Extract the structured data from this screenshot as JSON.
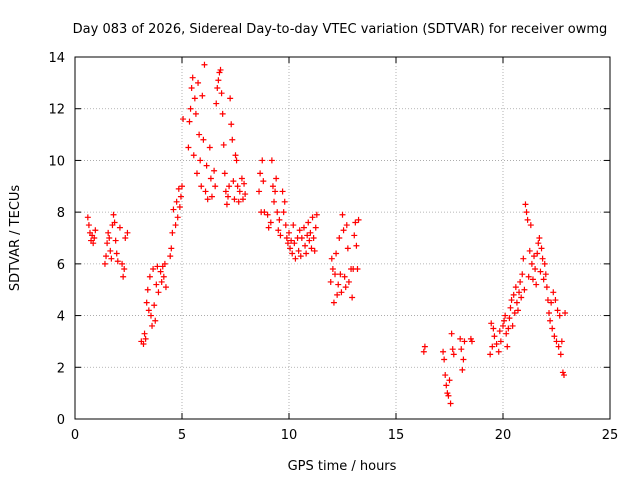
{
  "chart_data": {
    "type": "scatter",
    "title": "Day 083 of 2026, Sidereal Day-to-day VTEC variation (SDTVAR) for receiver owmg",
    "xlabel": "GPS time / hours",
    "ylabel": "SDTVAR / TECUs",
    "xlim": [
      0,
      25
    ],
    "ylim": [
      0,
      14
    ],
    "xticks": [
      0,
      5,
      10,
      15,
      20,
      25
    ],
    "yticks": [
      0,
      2,
      4,
      6,
      8,
      10,
      12,
      14
    ],
    "grid": true,
    "marker": "+",
    "colors": {
      "points": "#ff0000",
      "grid": "#a0a0a0",
      "axes": "#000000"
    },
    "series": [
      {
        "name": "SDTVAR",
        "points": [
          [
            0.6,
            7.8
          ],
          [
            0.65,
            7.5
          ],
          [
            0.7,
            7.2
          ],
          [
            0.75,
            6.9
          ],
          [
            0.8,
            7.1
          ],
          [
            0.85,
            6.8
          ],
          [
            0.9,
            7.0
          ],
          [
            0.95,
            7.3
          ],
          [
            1.4,
            6.0
          ],
          [
            1.45,
            6.3
          ],
          [
            1.5,
            6.8
          ],
          [
            1.55,
            7.2
          ],
          [
            1.6,
            7.0
          ],
          [
            1.65,
            6.5
          ],
          [
            1.7,
            6.2
          ],
          [
            1.75,
            7.5
          ],
          [
            1.8,
            7.9
          ],
          [
            1.85,
            7.6
          ],
          [
            1.9,
            6.9
          ],
          [
            1.95,
            6.4
          ],
          [
            2.0,
            6.1
          ],
          [
            2.1,
            7.4
          ],
          [
            2.2,
            6.0
          ],
          [
            2.25,
            5.5
          ],
          [
            2.3,
            5.8
          ],
          [
            2.35,
            7.0
          ],
          [
            2.45,
            7.2
          ],
          [
            3.1,
            3.0
          ],
          [
            3.2,
            2.9
          ],
          [
            3.25,
            3.3
          ],
          [
            3.3,
            3.1
          ],
          [
            3.35,
            4.5
          ],
          [
            3.4,
            5.0
          ],
          [
            3.45,
            4.2
          ],
          [
            3.5,
            5.5
          ],
          [
            3.55,
            4.0
          ],
          [
            3.6,
            3.6
          ],
          [
            3.65,
            5.8
          ],
          [
            3.7,
            4.4
          ],
          [
            3.75,
            3.8
          ],
          [
            3.8,
            5.2
          ],
          [
            3.85,
            5.9
          ],
          [
            3.9,
            4.9
          ],
          [
            4.0,
            5.7
          ],
          [
            4.05,
            5.3
          ],
          [
            4.1,
            5.9
          ],
          [
            4.15,
            5.5
          ],
          [
            4.2,
            6.0
          ],
          [
            4.25,
            5.1
          ],
          [
            4.45,
            6.3
          ],
          [
            4.5,
            6.6
          ],
          [
            4.55,
            7.2
          ],
          [
            4.6,
            8.1
          ],
          [
            4.7,
            7.5
          ],
          [
            4.75,
            8.4
          ],
          [
            4.8,
            7.8
          ],
          [
            4.85,
            8.9
          ],
          [
            4.9,
            8.2
          ],
          [
            4.95,
            8.6
          ],
          [
            5.0,
            9.0
          ],
          [
            5.05,
            11.6
          ],
          [
            5.3,
            10.5
          ],
          [
            5.35,
            11.5
          ],
          [
            5.4,
            12.0
          ],
          [
            5.45,
            12.8
          ],
          [
            5.5,
            13.2
          ],
          [
            5.55,
            10.2
          ],
          [
            5.6,
            12.4
          ],
          [
            5.65,
            11.8
          ],
          [
            5.7,
            9.5
          ],
          [
            5.75,
            13.0
          ],
          [
            5.8,
            11.0
          ],
          [
            5.85,
            10.0
          ],
          [
            5.9,
            9.0
          ],
          [
            5.95,
            12.5
          ],
          [
            6.0,
            10.8
          ],
          [
            6.05,
            13.7
          ],
          [
            6.1,
            8.8
          ],
          [
            6.15,
            9.8
          ],
          [
            6.2,
            8.5
          ],
          [
            6.3,
            10.5
          ],
          [
            6.35,
            9.3
          ],
          [
            6.4,
            8.6
          ],
          [
            6.5,
            9.6
          ],
          [
            6.55,
            9.0
          ],
          [
            6.6,
            12.2
          ],
          [
            6.65,
            12.8
          ],
          [
            6.7,
            13.1
          ],
          [
            6.75,
            13.4
          ],
          [
            6.8,
            13.5
          ],
          [
            6.85,
            12.6
          ],
          [
            6.9,
            11.8
          ],
          [
            6.95,
            10.6
          ],
          [
            7.0,
            9.5
          ],
          [
            7.05,
            8.8
          ],
          [
            7.1,
            8.3
          ],
          [
            7.15,
            8.6
          ],
          [
            7.2,
            9.0
          ],
          [
            7.25,
            12.4
          ],
          [
            7.3,
            11.4
          ],
          [
            7.35,
            10.8
          ],
          [
            7.4,
            9.2
          ],
          [
            7.45,
            8.5
          ],
          [
            7.5,
            10.2
          ],
          [
            7.55,
            10.0
          ],
          [
            7.6,
            9.0
          ],
          [
            7.65,
            8.4
          ],
          [
            7.7,
            8.8
          ],
          [
            7.8,
            9.3
          ],
          [
            7.85,
            8.5
          ],
          [
            7.9,
            9.1
          ],
          [
            7.95,
            8.7
          ],
          [
            8.6,
            8.8
          ],
          [
            8.65,
            9.5
          ],
          [
            8.7,
            8.0
          ],
          [
            8.75,
            10.0
          ],
          [
            8.8,
            9.2
          ],
          [
            8.85,
            8.0
          ],
          [
            9.0,
            7.9
          ],
          [
            9.05,
            7.4
          ],
          [
            9.15,
            7.6
          ],
          [
            9.2,
            10.0
          ],
          [
            9.25,
            9.0
          ],
          [
            9.3,
            8.4
          ],
          [
            9.35,
            8.8
          ],
          [
            9.4,
            9.3
          ],
          [
            9.45,
            8.0
          ],
          [
            9.5,
            7.3
          ],
          [
            9.55,
            7.7
          ],
          [
            9.6,
            7.1
          ],
          [
            9.7,
            8.8
          ],
          [
            9.75,
            8.0
          ],
          [
            9.8,
            8.4
          ],
          [
            9.85,
            7.5
          ],
          [
            9.9,
            7.0
          ],
          [
            9.95,
            6.8
          ],
          [
            10.0,
            7.2
          ],
          [
            10.05,
            6.6
          ],
          [
            10.1,
            6.9
          ],
          [
            10.15,
            6.4
          ],
          [
            10.2,
            7.5
          ],
          [
            10.25,
            6.8
          ],
          [
            10.3,
            6.2
          ],
          [
            10.4,
            7.0
          ],
          [
            10.45,
            6.5
          ],
          [
            10.5,
            7.3
          ],
          [
            10.55,
            6.3
          ],
          [
            10.6,
            7.0
          ],
          [
            10.7,
            7.4
          ],
          [
            10.75,
            6.7
          ],
          [
            10.8,
            6.4
          ],
          [
            10.85,
            7.1
          ],
          [
            10.9,
            7.6
          ],
          [
            10.95,
            6.9
          ],
          [
            11.0,
            7.2
          ],
          [
            11.05,
            6.6
          ],
          [
            11.1,
            7.8
          ],
          [
            11.15,
            7.0
          ],
          [
            11.2,
            6.5
          ],
          [
            11.25,
            7.4
          ],
          [
            11.3,
            7.9
          ],
          [
            11.95,
            5.3
          ],
          [
            12.0,
            6.2
          ],
          [
            12.05,
            5.8
          ],
          [
            12.1,
            4.5
          ],
          [
            12.15,
            5.6
          ],
          [
            12.2,
            6.4
          ],
          [
            12.25,
            4.8
          ],
          [
            12.3,
            5.2
          ],
          [
            12.35,
            7.0
          ],
          [
            12.4,
            5.6
          ],
          [
            12.45,
            4.9
          ],
          [
            12.5,
            7.9
          ],
          [
            12.55,
            7.3
          ],
          [
            12.6,
            5.5
          ],
          [
            12.65,
            5.1
          ],
          [
            12.7,
            7.5
          ],
          [
            12.75,
            6.6
          ],
          [
            12.8,
            5.3
          ],
          [
            12.9,
            5.8
          ],
          [
            12.95,
            4.7
          ],
          [
            13.0,
            5.8
          ],
          [
            13.05,
            7.1
          ],
          [
            13.1,
            7.6
          ],
          [
            13.15,
            6.7
          ],
          [
            13.2,
            5.8
          ],
          [
            13.25,
            7.7
          ],
          [
            16.3,
            2.6
          ],
          [
            16.35,
            2.8
          ],
          [
            17.2,
            2.6
          ],
          [
            17.25,
            2.3
          ],
          [
            17.3,
            1.7
          ],
          [
            17.35,
            1.3
          ],
          [
            17.4,
            1.0
          ],
          [
            17.45,
            0.9
          ],
          [
            17.5,
            1.5
          ],
          [
            17.55,
            0.6
          ],
          [
            17.6,
            3.3
          ],
          [
            17.65,
            2.7
          ],
          [
            17.7,
            2.5
          ],
          [
            18.0,
            3.1
          ],
          [
            18.05,
            2.7
          ],
          [
            18.1,
            1.9
          ],
          [
            18.15,
            2.3
          ],
          [
            18.2,
            3.0
          ],
          [
            18.5,
            3.1
          ],
          [
            18.55,
            3.0
          ],
          [
            19.4,
            2.5
          ],
          [
            19.45,
            3.7
          ],
          [
            19.5,
            2.8
          ],
          [
            19.55,
            3.5
          ],
          [
            19.6,
            3.2
          ],
          [
            19.7,
            2.9
          ],
          [
            19.8,
            2.6
          ],
          [
            19.85,
            3.4
          ],
          [
            19.9,
            3.0
          ],
          [
            20.0,
            3.6
          ],
          [
            20.05,
            3.8
          ],
          [
            20.1,
            4.0
          ],
          [
            20.15,
            3.3
          ],
          [
            20.2,
            2.8
          ],
          [
            20.25,
            3.5
          ],
          [
            20.3,
            3.9
          ],
          [
            20.35,
            4.3
          ],
          [
            20.4,
            4.6
          ],
          [
            20.45,
            3.6
          ],
          [
            20.5,
            4.8
          ],
          [
            20.55,
            4.1
          ],
          [
            20.6,
            5.1
          ],
          [
            20.65,
            4.5
          ],
          [
            20.7,
            4.2
          ],
          [
            20.75,
            4.9
          ],
          [
            20.8,
            5.3
          ],
          [
            20.85,
            4.7
          ],
          [
            20.9,
            5.6
          ],
          [
            20.95,
            6.2
          ],
          [
            21.0,
            5.0
          ],
          [
            21.05,
            8.3
          ],
          [
            21.1,
            8.0
          ],
          [
            21.15,
            7.7
          ],
          [
            21.2,
            5.5
          ],
          [
            21.25,
            6.5
          ],
          [
            21.3,
            7.5
          ],
          [
            21.35,
            6.0
          ],
          [
            21.4,
            5.4
          ],
          [
            21.45,
            6.3
          ],
          [
            21.5,
            5.8
          ],
          [
            21.55,
            5.2
          ],
          [
            21.6,
            6.4
          ],
          [
            21.65,
            6.8
          ],
          [
            21.7,
            7.0
          ],
          [
            21.75,
            5.7
          ],
          [
            21.8,
            6.6
          ],
          [
            21.85,
            6.2
          ],
          [
            21.9,
            5.4
          ],
          [
            21.95,
            6.0
          ],
          [
            22.0,
            5.6
          ],
          [
            22.05,
            5.1
          ],
          [
            22.1,
            4.6
          ],
          [
            22.15,
            4.1
          ],
          [
            22.2,
            3.8
          ],
          [
            22.25,
            4.5
          ],
          [
            22.3,
            3.5
          ],
          [
            22.35,
            4.9
          ],
          [
            22.4,
            3.2
          ],
          [
            22.45,
            4.6
          ],
          [
            22.5,
            3.0
          ],
          [
            22.55,
            4.2
          ],
          [
            22.6,
            2.8
          ],
          [
            22.65,
            4.0
          ],
          [
            22.7,
            2.5
          ],
          [
            22.75,
            3.0
          ],
          [
            22.8,
            1.8
          ],
          [
            22.85,
            1.7
          ],
          [
            22.9,
            4.1
          ]
        ]
      }
    ]
  }
}
